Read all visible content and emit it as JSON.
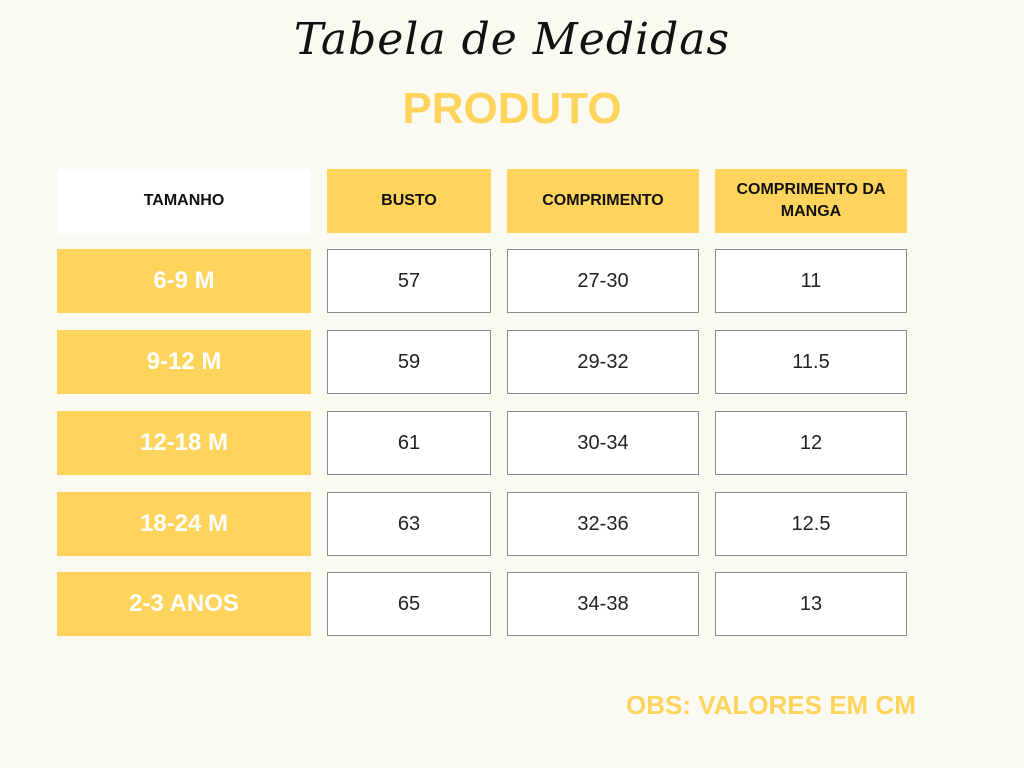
{
  "title": "Tabela de Medidas",
  "subtitle": "PRODUTO",
  "headers": [
    "TAMANHO",
    "BUSTO",
    "COMPRIMENTO",
    "COMPRIMENTO DA MANGA"
  ],
  "rows": [
    {
      "size": "6-9 M",
      "busto": "57",
      "comprimento": "27-30",
      "manga": "11"
    },
    {
      "size": "9-12 M",
      "busto": "59",
      "comprimento": "29-32",
      "manga": "11.5"
    },
    {
      "size": "12-18 M",
      "busto": "61",
      "comprimento": "30-34",
      "manga": "12"
    },
    {
      "size": "18-24 M",
      "busto": "63",
      "comprimento": "32-36",
      "manga": "12.5"
    },
    {
      "size": "2-3 ANOS",
      "busto": "65",
      "comprimento": "34-38",
      "manga": "13"
    }
  ],
  "note": "OBS: VALORES EM CM",
  "colors": {
    "accent": "#ffd45c",
    "background": "#fafaf2",
    "border": "#8a8a8a"
  }
}
